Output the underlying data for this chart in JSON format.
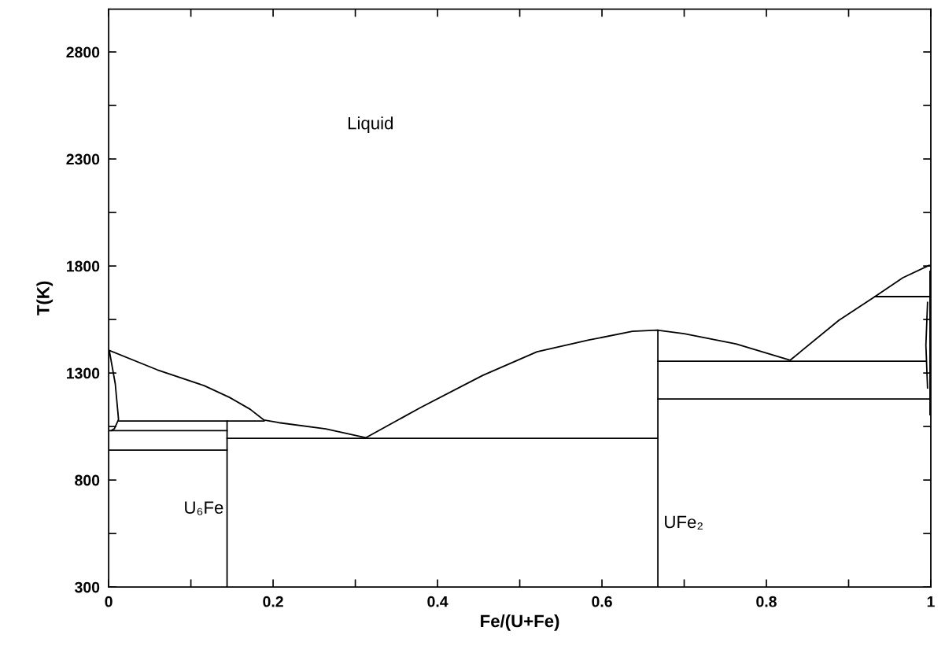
{
  "chart_data": {
    "type": "line",
    "xlabel": "Fe/(U+Fe)",
    "ylabel": "T(K)",
    "xlim": [
      0,
      1
    ],
    "ylim": [
      300,
      3000
    ],
    "xticks": [
      0,
      {
        "value": 0.1,
        "label": null
      },
      0.2,
      {
        "value": 0.3,
        "label": null
      },
      0.4,
      {
        "value": 0.5,
        "label": null
      },
      0.6,
      {
        "value": 0.7,
        "label": null
      },
      0.8,
      {
        "value": 0.9,
        "label": null
      },
      1
    ],
    "yticks": [
      300,
      {
        "value": 550,
        "label": null
      },
      800,
      {
        "value": 1050,
        "label": null
      },
      1300,
      {
        "value": 1550,
        "label": null
      },
      1800,
      {
        "value": 2050,
        "label": null
      },
      2300,
      {
        "value": 2550,
        "label": null
      },
      2800
    ],
    "grid": false,
    "legend": false,
    "marker": "none",
    "line_style": "solid",
    "series": [
      {
        "color": "#000000",
        "x": [
          0,
          0.059,
          0.116,
          0.147,
          0.172,
          0.189,
          0.207,
          0.264,
          0.313,
          0.379,
          0.455,
          0.521,
          0.584,
          0.637,
          0.667,
          0.7,
          0.763,
          0.829,
          0.888,
          0.932,
          0.966,
          0.998
        ],
        "values": [
          1407,
          1315,
          1241,
          1186,
          1131,
          1080,
          1068,
          1039,
          998,
          1138,
          1289,
          1399,
          1454,
          1495,
          1500,
          1484,
          1436,
          1360,
          1546,
          1657,
          1745,
          1803
        ]
      },
      {
        "color": "#000000",
        "x": [
          0.001,
          0.008,
          0.012,
          0.007,
          0.003
        ],
        "values": [
          1400,
          1250,
          1083,
          1040,
          1031
        ]
      },
      {
        "color": "#000000",
        "x": [
          0.012,
          0.189
        ],
        "values": [
          1076,
          1076
        ]
      },
      {
        "color": "#000000",
        "x": [
          0,
          0.144
        ],
        "values": [
          1031,
          1031
        ]
      },
      {
        "color": "#000000",
        "x": [
          0,
          0.144
        ],
        "values": [
          940,
          940
        ]
      },
      {
        "color": "#000000",
        "x": [
          0.144,
          0.144
        ],
        "values": [
          300,
          1076
        ]
      },
      {
        "color": "#000000",
        "x": [
          0.144,
          0.668
        ],
        "values": [
          995,
          995
        ]
      },
      {
        "color": "#000000",
        "x": [
          0.668,
          0.668
        ],
        "values": [
          300,
          1500
        ]
      },
      {
        "color": "#000000",
        "x": [
          0.668,
          0.994
        ],
        "values": [
          1355,
          1355
        ]
      },
      {
        "color": "#000000",
        "x": [
          0.668,
          1
        ],
        "values": [
          1179,
          1179
        ]
      },
      {
        "color": "#000000",
        "x": [
          0.932,
          1
        ],
        "values": [
          1657,
          1657
        ]
      },
      {
        "color": "#000000",
        "x": [
          0.999,
          0.999
        ],
        "values": [
          1105,
          1775
        ]
      },
      {
        "color": "#000000",
        "x": [
          0.996,
          0.994,
          0.996
        ],
        "values": [
          1630,
          1430,
          1230
        ]
      }
    ],
    "annotations": [
      "Liquid",
      "U₆Fe",
      "UFe₂"
    ]
  }
}
